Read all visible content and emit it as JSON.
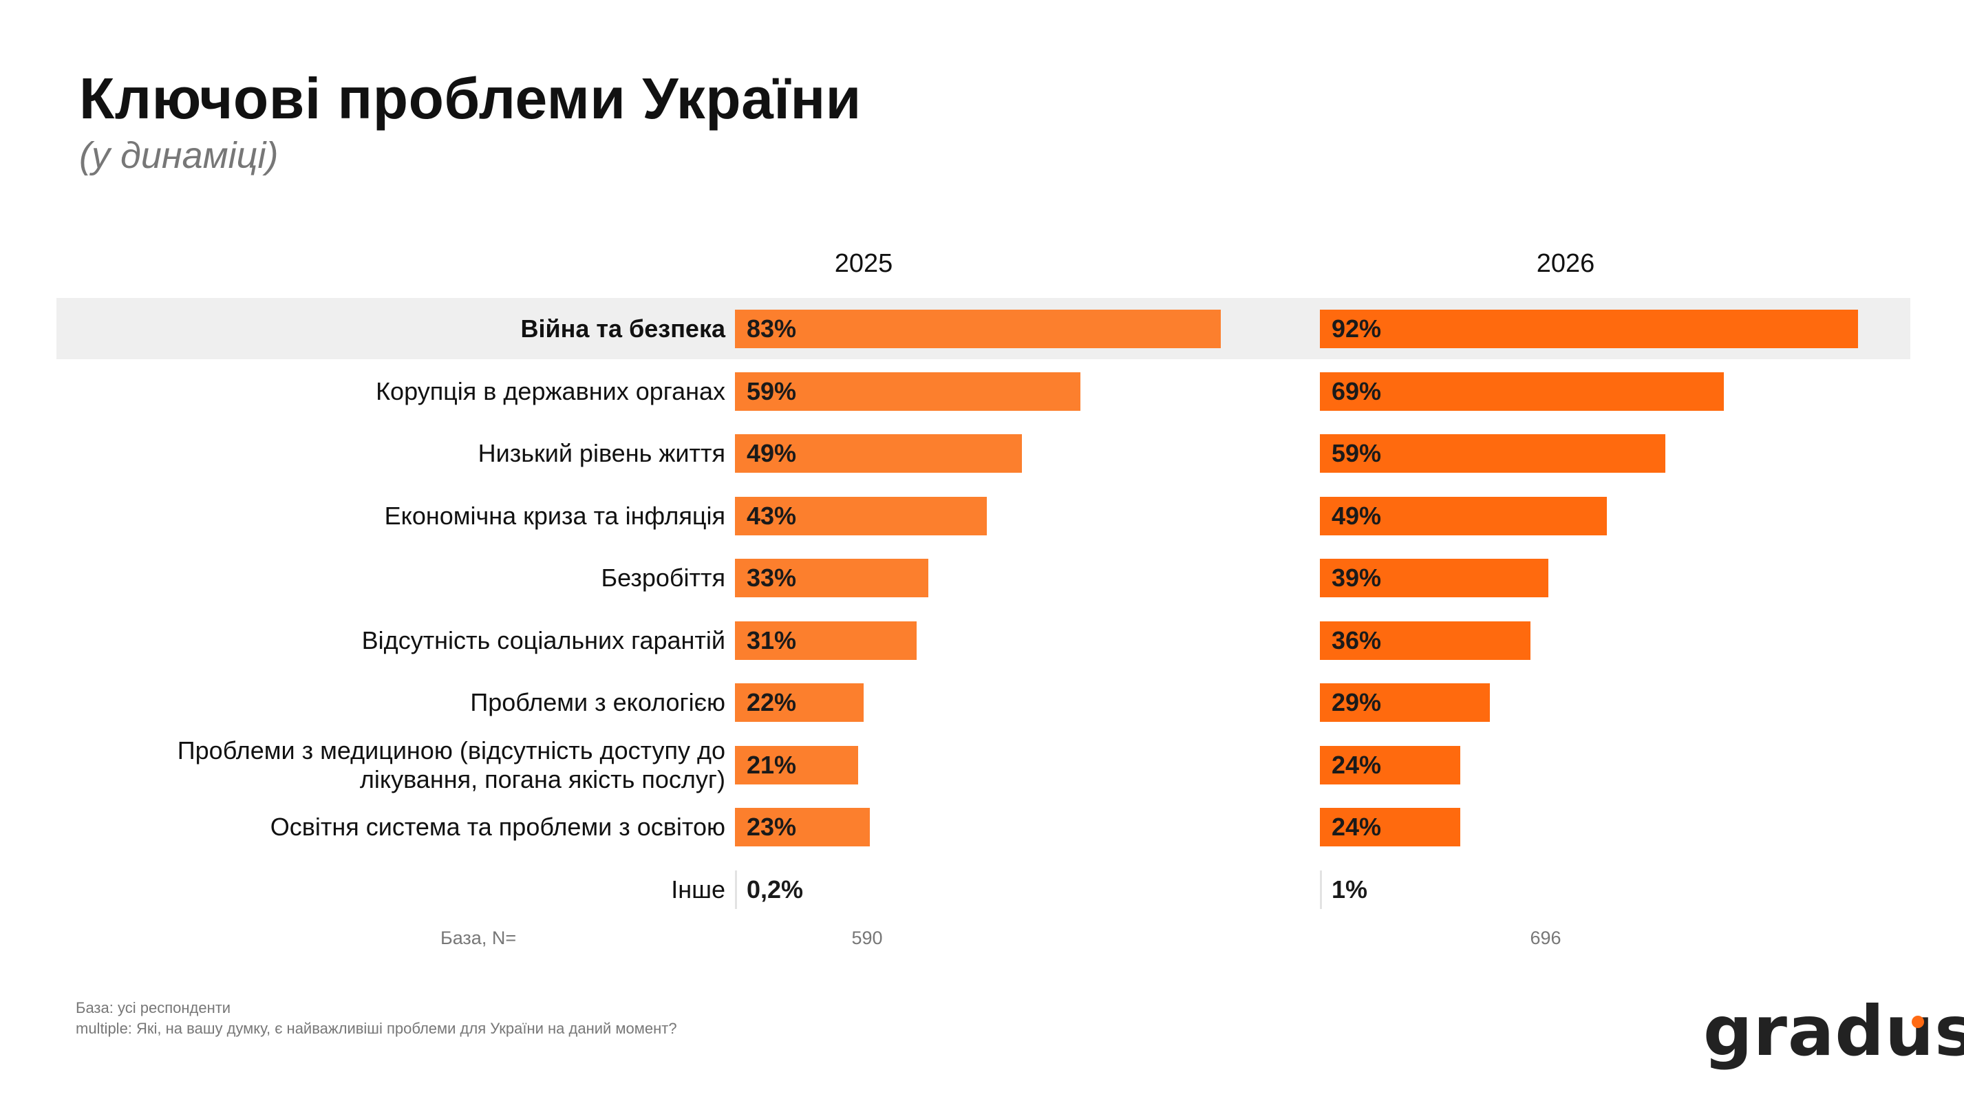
{
  "header": {
    "title": "Ключові проблеми України",
    "subtitle": "(у динаміці)"
  },
  "chart_data": {
    "type": "bar",
    "orientation": "horizontal",
    "value_suffix": "%",
    "categories": [
      "Війна та безпека",
      "Корупція в державних органах",
      "Низький рівень життя",
      "Економічна криза та інфляція",
      "Безробіття",
      "Відсутність соціальних гарантій",
      "Проблеми з екологією",
      "Проблеми з медициною (відсутність доступу до лікування, погана якість послуг)",
      "Освітня система та проблеми з освітою",
      "Інше"
    ],
    "category_lines": [
      [
        "Війна та безпека"
      ],
      [
        "Корупція в державних органах"
      ],
      [
        "Низький рівень життя"
      ],
      [
        "Економічна криза та інфляція"
      ],
      [
        "Безробіття"
      ],
      [
        "Відсутність соціальних гарантій"
      ],
      [
        "Проблеми з екологією"
      ],
      [
        "Проблеми з медициною (відсутність доступу до",
        "лікування, погана якість послуг)"
      ],
      [
        "Освітня система та проблеми з освітою"
      ],
      [
        "Інше"
      ]
    ],
    "highlighted_category": "Війна та безпека",
    "series": [
      {
        "name": "2025",
        "values": [
          83,
          59,
          49,
          43,
          33,
          31,
          22,
          21,
          23,
          0.2
        ],
        "labels": [
          "83%",
          "59%",
          "49%",
          "43%",
          "33%",
          "31%",
          "22%",
          "21%",
          "23%",
          "0,2%"
        ],
        "color": "#fc7f2d",
        "base_n": "590"
      },
      {
        "name": "2026",
        "values": [
          92,
          69,
          59,
          49,
          39,
          36,
          29,
          24,
          24,
          1
        ],
        "labels": [
          "92%",
          "69%",
          "59%",
          "49%",
          "39%",
          "36%",
          "29%",
          "24%",
          "24%",
          "1%"
        ],
        "color": "#ff6a0e",
        "base_n": "696"
      }
    ],
    "xlim": [
      0,
      100
    ],
    "grid": false,
    "legend": "none"
  },
  "base_label": "База, N=",
  "footnotes": [
    "База: усі респонденти",
    "multiple: Які, на вашу думку, є найважливіші проблеми для України на даний момент?"
  ],
  "logo": {
    "text": "gradus",
    "accent_color": "#ff6a13"
  }
}
